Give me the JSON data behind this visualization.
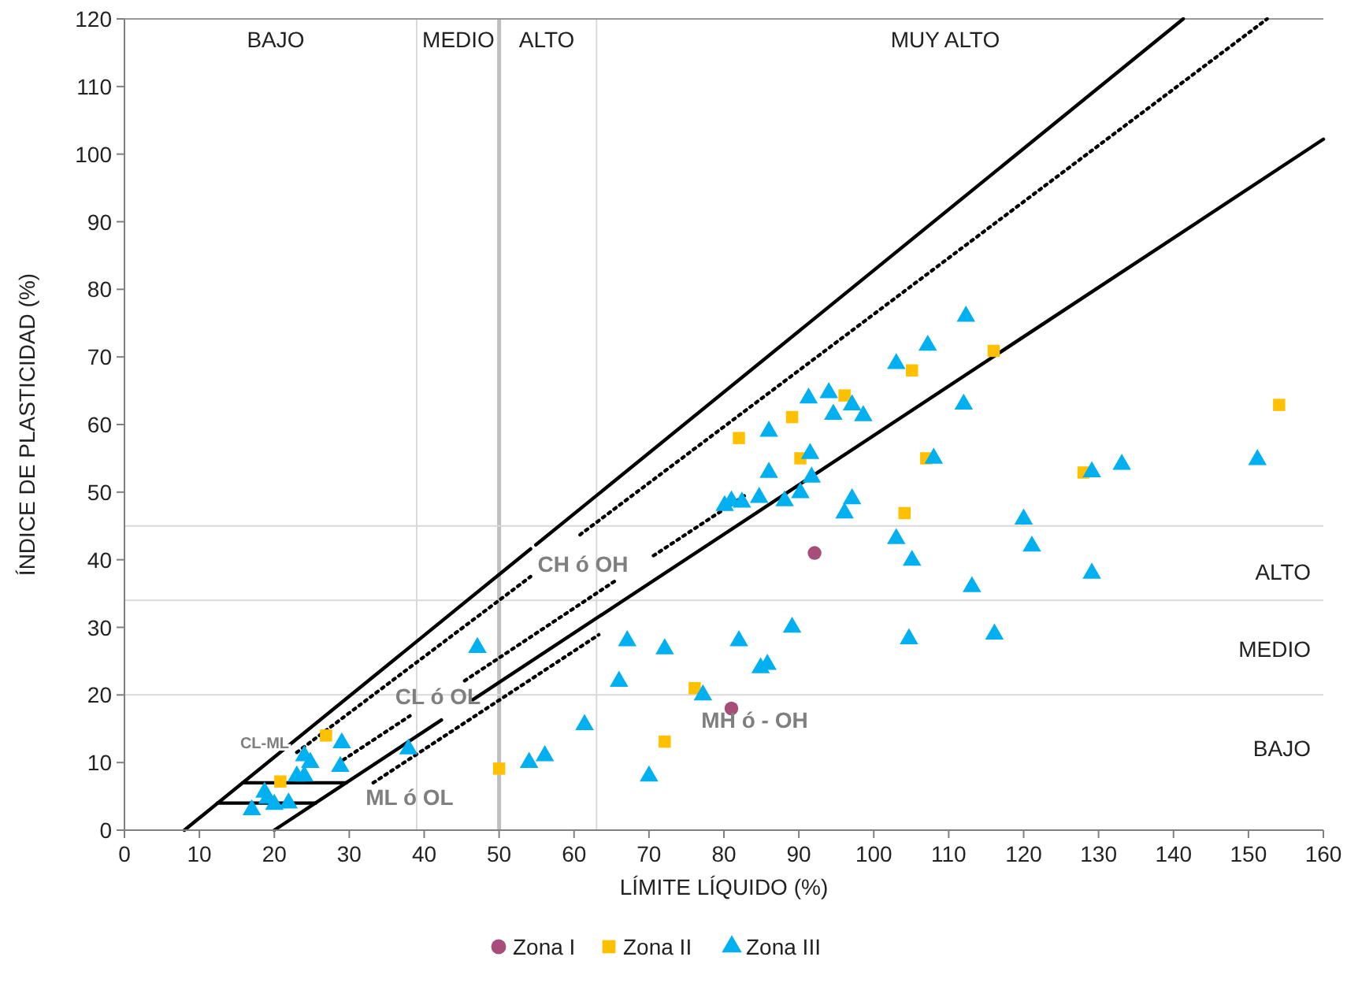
{
  "chart_data": {
    "type": "scatter",
    "xlabel": "LÍMITE LÍQUIDO (%)",
    "ylabel": "ÍNDICE DE PLASTICIDAD (%)",
    "xlim": [
      0,
      160
    ],
    "xticks": [
      0,
      10,
      20,
      30,
      40,
      50,
      60,
      70,
      80,
      90,
      100,
      110,
      120,
      130,
      140,
      150,
      160
    ],
    "ylim": [
      0,
      120
    ],
    "yticks": [
      0,
      10,
      20,
      30,
      40,
      50,
      60,
      70,
      80,
      90,
      100,
      110,
      120
    ],
    "legend": "bottom",
    "ref_lines": [
      {
        "axis": "x",
        "value": 39,
        "color": "#d9d9d9"
      },
      {
        "axis": "x",
        "value": 50,
        "color": "#bfbfbf"
      },
      {
        "axis": "x",
        "value": 63,
        "color": "#d9d9d9"
      },
      {
        "axis": "y",
        "value": 20,
        "color": "#d9d9d9"
      },
      {
        "axis": "y",
        "value": 34,
        "color": "#d9d9d9"
      },
      {
        "axis": "y",
        "value": 45,
        "color": "#d9d9d9"
      }
    ],
    "annotations": [
      "BAJO",
      "MEDIO",
      "ALTO",
      "MUY ALTO",
      "ALTO",
      "MEDIO",
      "BAJO",
      "CH ó OH",
      "CL ó OL",
      "CL-ML",
      "ML ó OL",
      "MH ó - OH"
    ],
    "series": [
      {
        "type": "line",
        "color": "#000000",
        "line_style": "solid",
        "marker": "none",
        "x": [
          8,
          54.2,
          54.5,
          54.9,
          141.3
        ],
        "values": [
          0,
          41.6,
          null,
          42.2,
          120
        ]
      },
      {
        "type": "line",
        "color": "#000000",
        "line_style": "dotted",
        "marker": "none",
        "x": [
          23,
          54.2,
          57.5,
          60.8,
          152.5
        ],
        "values": [
          11.5,
          37.5,
          null,
          43.7,
          120
        ]
      },
      {
        "type": "line",
        "color": "#000000",
        "line_style": "dotted",
        "marker": "none",
        "x": [
          29.2,
          38.1,
          41.75,
          45.4,
          65.8,
          68.2,
          70.6,
          82.8
        ],
        "values": [
          10.4,
          16.9,
          null,
          22.1,
          37.1,
          null,
          40.6,
          49.5
        ]
      },
      {
        "type": "line",
        "color": "#000000",
        "line_style": "solid",
        "marker": "none",
        "x": [
          20,
          42.3,
          44.4,
          46.5,
          160
        ],
        "values": [
          0,
          16.3,
          null,
          19.3,
          102.2
        ]
      },
      {
        "type": "line",
        "color": "#000000",
        "line_style": "dotted",
        "marker": "none",
        "x": [
          33.2,
          63.3
        ],
        "values": [
          7,
          28.9
        ]
      },
      {
        "type": "line",
        "color": "#000000",
        "line_style": "solid",
        "marker": "none",
        "x": [
          15.8,
          29.6
        ],
        "values": [
          7,
          7
        ]
      },
      {
        "type": "line",
        "color": "#000000",
        "line_style": "solid",
        "marker": "none",
        "x": [
          12.4,
          25.5
        ],
        "values": [
          4,
          4
        ]
      },
      {
        "name": "Zona I",
        "color": "#a64d79",
        "marker": "circle",
        "x": [
          81,
          92.1
        ],
        "values": [
          18,
          41
        ]
      },
      {
        "name": "Zona II",
        "color": "#ffc000",
        "marker": "square",
        "x": [
          20.8,
          26.9,
          50,
          72.1,
          76.1,
          82,
          89.1,
          90.2,
          96.1,
          104.1,
          105.1,
          107,
          116,
          128,
          154.1
        ],
        "values": [
          7.2,
          14,
          9.1,
          13.1,
          21,
          58,
          61.1,
          55,
          64.3,
          46.9,
          68,
          55,
          70.9,
          52.9,
          62.9
        ]
      },
      {
        "name": "Zona III",
        "color": "#00b0f0",
        "marker": "triangle",
        "x": [
          17,
          18.7,
          19.1,
          20,
          21.9,
          23,
          24,
          24,
          24.8,
          28.8,
          29,
          37.9,
          47.1,
          54,
          56.1,
          61.4,
          66,
          67.1,
          70,
          72.1,
          77.2,
          80.1,
          81,
          82,
          82.4,
          84.7,
          84.9,
          85.8,
          86,
          86,
          88.1,
          89.1,
          90.2,
          91.3,
          91.5,
          91.7,
          94,
          94.6,
          96.1,
          97.1,
          97.1,
          98.6,
          103,
          103,
          104.7,
          105.1,
          107.2,
          108,
          112,
          112.3,
          113.1,
          116.1,
          120,
          121.1,
          129.1,
          129.1,
          133.1,
          151.2
        ],
        "values": [
          3,
          5.6,
          4.7,
          3.8,
          4,
          8,
          8,
          11,
          10,
          9.4,
          12.9,
          12,
          27,
          10,
          11,
          15.6,
          22,
          28,
          8,
          26.8,
          20,
          48,
          48.7,
          28,
          48.5,
          49.2,
          24,
          24.5,
          52.9,
          59,
          48.7,
          30,
          49.9,
          63.9,
          55.7,
          52.2,
          64.7,
          61.5,
          46.9,
          62.9,
          49,
          61.3,
          69,
          43.1,
          28.3,
          39.9,
          71.7,
          55,
          63,
          76,
          36,
          29,
          46,
          42,
          53,
          38,
          54.1,
          54.8
        ]
      }
    ]
  }
}
